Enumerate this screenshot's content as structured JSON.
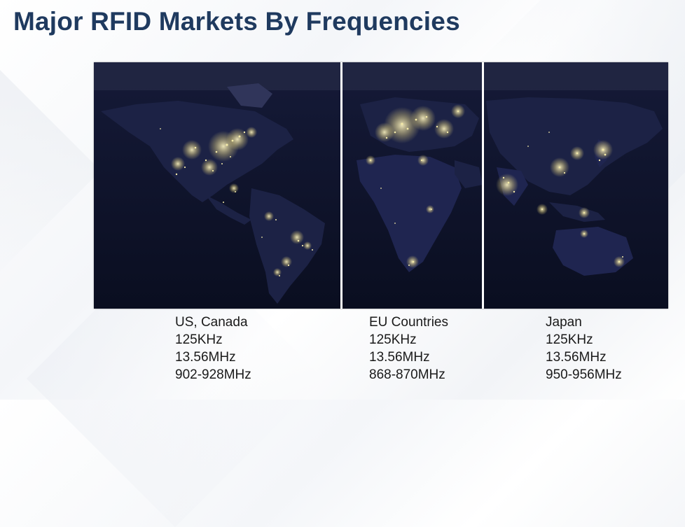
{
  "title": "Major RFID Markets By Frequencies",
  "map": {
    "image": "night-lights-world-map",
    "panels": [
      "americas-panel",
      "europe-africa-panel",
      "asia-oceania-panel"
    ]
  },
  "regions": [
    {
      "name": "US, Canada",
      "frequencies": [
        "125KHz",
        "13.56MHz",
        "902-928MHz"
      ]
    },
    {
      "name": "EU Countries",
      "frequencies": [
        "125KHz",
        "13.56MHz",
        "868-870MHz"
      ]
    },
    {
      "name": "Japan",
      "frequencies": [
        "125KHz",
        "13.56MHz",
        "950-956MHz"
      ]
    }
  ],
  "colors": {
    "title": "#1f3a5f",
    "map_background": "#0b0f24",
    "city_lights": "#f3e9a8",
    "divider": "#ffffff"
  }
}
